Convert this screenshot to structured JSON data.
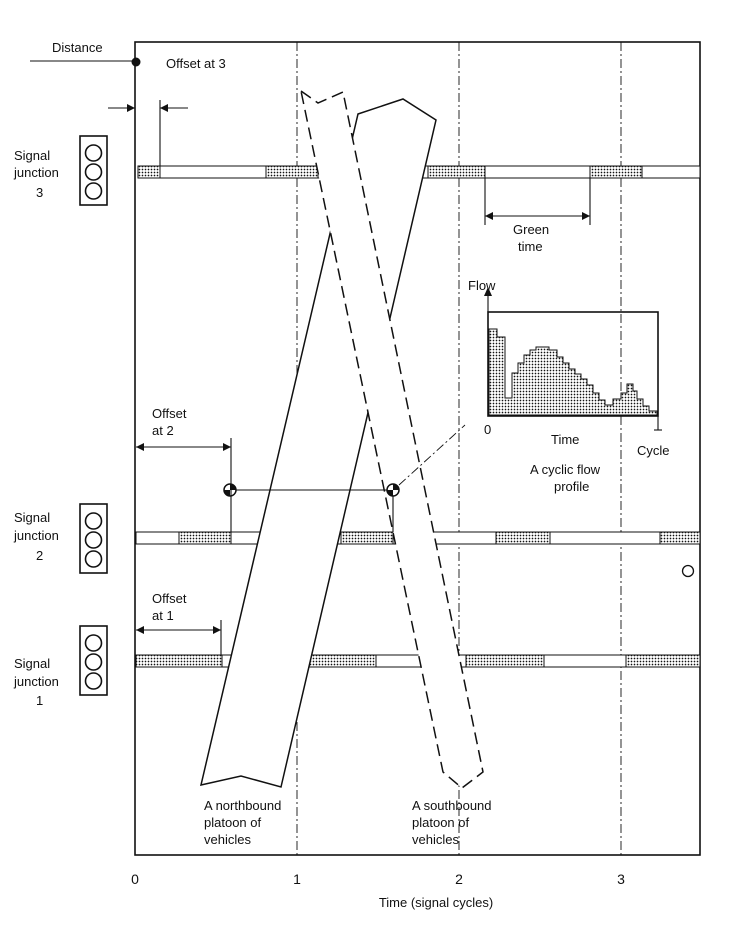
{
  "axes": {
    "y_label": "Distance",
    "x_label": "Time (signal cycles)",
    "x_ticks": [
      "0",
      "1",
      "2",
      "3"
    ]
  },
  "junctions": [
    {
      "label_lines": [
        "Signal",
        "junction",
        "3"
      ]
    },
    {
      "label_lines": [
        "Signal",
        "junction",
        "2"
      ]
    },
    {
      "label_lines": [
        "Signal",
        "junction",
        "1"
      ]
    }
  ],
  "annotations": {
    "offset3": [
      "Offset at 3"
    ],
    "offset2": [
      "Offset",
      "at 2"
    ],
    "offset1": [
      "Offset",
      "at 1"
    ],
    "green_time": [
      "Green",
      "time"
    ],
    "northbound": [
      "A northbound",
      "platoon of",
      "vehicles"
    ],
    "southbound": [
      "A southbound",
      "platoon of",
      "vehicles"
    ]
  },
  "inset": {
    "y_label": "Flow",
    "x_label": "Time",
    "x_start": "0",
    "x_end": "Cycle",
    "caption": [
      "A cyclic flow",
      "profile"
    ]
  },
  "colors": {
    "ink": "#111111",
    "paper": "#ffffff"
  }
}
